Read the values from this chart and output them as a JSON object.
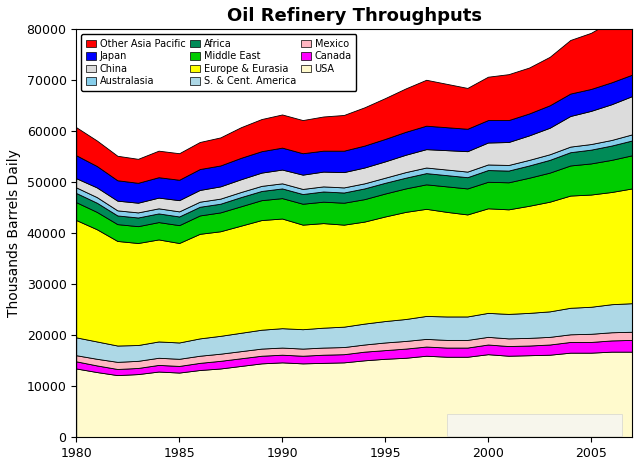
{
  "title": "Oil Refinery Throughputs",
  "ylabel": "Thousands Barrels Daily",
  "xlim": [
    1980,
    2007
  ],
  "ylim": [
    0,
    80000
  ],
  "yticks": [
    0,
    10000,
    20000,
    30000,
    40000,
    50000,
    60000,
    70000,
    80000
  ],
  "xticks": [
    1980,
    1985,
    1990,
    1995,
    2000,
    2005
  ],
  "years": [
    1980,
    1981,
    1982,
    1983,
    1984,
    1985,
    1986,
    1987,
    1988,
    1989,
    1990,
    1991,
    1992,
    1993,
    1994,
    1995,
    1996,
    1997,
    1998,
    1999,
    2000,
    2001,
    2002,
    2003,
    2004,
    2005,
    2006,
    2007
  ],
  "series": {
    "USA": {
      "color": "#FFFACD",
      "values": [
        13500,
        12800,
        12200,
        12400,
        12900,
        12700,
        13200,
        13500,
        14000,
        14500,
        14700,
        14500,
        14600,
        14700,
        15100,
        15400,
        15600,
        16000,
        15800,
        15800,
        16300,
        16000,
        16100,
        16200,
        16600,
        16600,
        16800,
        16800
      ]
    },
    "Canada": {
      "color": "#FF00FF",
      "values": [
        1400,
        1300,
        1200,
        1200,
        1300,
        1300,
        1400,
        1500,
        1500,
        1500,
        1500,
        1500,
        1600,
        1600,
        1700,
        1700,
        1800,
        1800,
        1800,
        1800,
        1900,
        1900,
        1900,
        2000,
        2100,
        2100,
        2200,
        2300
      ]
    },
    "Mexico": {
      "color": "#FFB6C1",
      "values": [
        1200,
        1300,
        1400,
        1400,
        1400,
        1400,
        1400,
        1400,
        1400,
        1400,
        1400,
        1400,
        1400,
        1400,
        1400,
        1500,
        1500,
        1500,
        1500,
        1500,
        1500,
        1500,
        1500,
        1500,
        1500,
        1600,
        1600,
        1600
      ]
    },
    "S. & Cent. America": {
      "color": "#ADD8E6",
      "values": [
        3500,
        3400,
        3200,
        3100,
        3200,
        3200,
        3400,
        3500,
        3600,
        3700,
        3800,
        3800,
        3900,
        4000,
        4100,
        4200,
        4300,
        4500,
        4600,
        4600,
        4700,
        4800,
        4900,
        5000,
        5200,
        5300,
        5500,
        5600
      ]
    },
    "Europe & Eurasia": {
      "color": "#FFFF00",
      "values": [
        23000,
        22000,
        20500,
        20000,
        20000,
        19500,
        20500,
        20500,
        21000,
        21500,
        21500,
        20500,
        20500,
        20000,
        20000,
        20500,
        21000,
        21000,
        20500,
        20000,
        20500,
        20500,
        21000,
        21500,
        22000,
        22000,
        22000,
        22500
      ]
    },
    "Middle East": {
      "color": "#00CC00",
      "values": [
        3500,
        3400,
        3300,
        3300,
        3400,
        3500,
        3600,
        3700,
        3800,
        3900,
        4000,
        4100,
        4200,
        4300,
        4400,
        4500,
        4600,
        4800,
        5000,
        5100,
        5200,
        5300,
        5500,
        5700,
        5900,
        6100,
        6300,
        6500
      ]
    },
    "Africa": {
      "color": "#008B57",
      "values": [
        1800,
        1800,
        1700,
        1700,
        1700,
        1700,
        1700,
        1700,
        1800,
        1800,
        1900,
        1900,
        2000,
        2000,
        2100,
        2100,
        2100,
        2200,
        2200,
        2200,
        2300,
        2300,
        2400,
        2500,
        2600,
        2700,
        2800,
        2900
      ]
    },
    "Australasia": {
      "color": "#87CEEB",
      "values": [
        1100,
        1100,
        1000,
        1000,
        1000,
        1000,
        1000,
        1000,
        1000,
        1000,
        1000,
        1000,
        1000,
        1000,
        1000,
        1000,
        1100,
        1100,
        1100,
        1100,
        1100,
        1100,
        1100,
        1100,
        1100,
        1100,
        1100,
        1200
      ]
    },
    "China": {
      "color": "#DCDCDC",
      "values": [
        1800,
        1900,
        1900,
        1900,
        2100,
        2200,
        2300,
        2400,
        2500,
        2600,
        2700,
        2800,
        2900,
        3000,
        3100,
        3200,
        3400,
        3600,
        3800,
        4000,
        4300,
        4500,
        4800,
        5200,
        6000,
        6500,
        7000,
        7500
      ]
    },
    "Japan": {
      "color": "#0000FF",
      "values": [
        4500,
        4200,
        4000,
        3900,
        4000,
        4000,
        4100,
        4100,
        4200,
        4200,
        4300,
        4200,
        4100,
        4200,
        4300,
        4400,
        4500,
        4600,
        4500,
        4400,
        4400,
        4300,
        4300,
        4400,
        4400,
        4300,
        4300,
        4200
      ]
    },
    "Other Asia Pacific": {
      "color": "#FF0000",
      "values": [
        5500,
        5000,
        4800,
        4700,
        5200,
        5200,
        5300,
        5500,
        6000,
        6300,
        6500,
        6500,
        6700,
        7000,
        7500,
        8000,
        8500,
        9000,
        8500,
        8000,
        8500,
        9000,
        9000,
        9500,
        10500,
        11000,
        12000,
        13000
      ]
    }
  },
  "stack_order": [
    "USA",
    "Canada",
    "Mexico",
    "S. & Cent. America",
    "Europe & Eurasia",
    "Middle East",
    "Africa",
    "Australasia",
    "China",
    "Japan",
    "Other Asia Pacific"
  ],
  "legend_order": [
    "Other Asia Pacific",
    "Japan",
    "China",
    "Australasia",
    "Africa",
    "Middle East",
    "Europe & Eurasia",
    "S. & Cent. America",
    "Mexico",
    "Canada",
    "USA"
  ],
  "legend_ncol": 3,
  "background_color": "#FFFFFF",
  "title_fontsize": 13,
  "axis_fontsize": 9,
  "ylabel_fontsize": 10
}
